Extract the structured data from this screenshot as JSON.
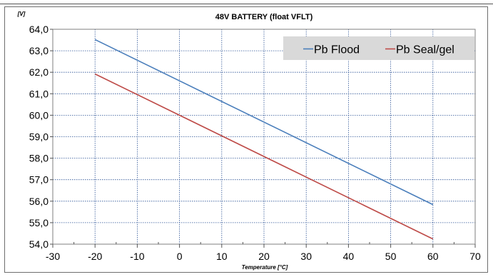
{
  "chart_data": {
    "type": "line",
    "title": "48V BATTERY (float VFLT)",
    "ylabel": "[V]",
    "xlabel": "Temperature [°C]",
    "xlim": [
      -30,
      70
    ],
    "ylim": [
      54,
      64
    ],
    "x_ticks": [
      "-30",
      "-20",
      "-10",
      "0",
      "10",
      "20",
      "30",
      "40",
      "50",
      "60",
      "70"
    ],
    "y_ticks": [
      "54,0",
      "55,0",
      "56,0",
      "57,0",
      "58,0",
      "59,0",
      "60,0",
      "61,0",
      "62,0",
      "63,0",
      "64,0"
    ],
    "grid": true,
    "legend_position": "top-right",
    "series": [
      {
        "name": "Pb Flood",
        "color": "#4a7ebb",
        "x": [
          -20,
          60
        ],
        "y": [
          63.52,
          55.84
        ]
      },
      {
        "name": "Pb Seal/gel",
        "color": "#be4b48",
        "x": [
          -20,
          60
        ],
        "y": [
          61.92,
          54.24
        ]
      }
    ]
  }
}
